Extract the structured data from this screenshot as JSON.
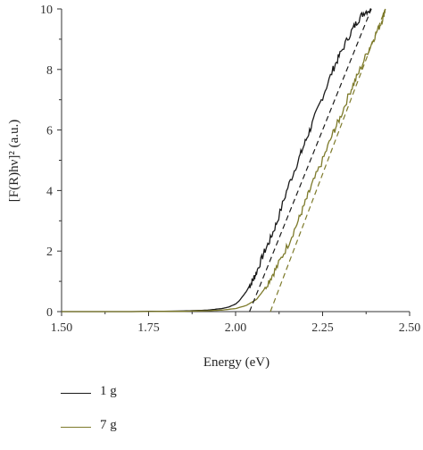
{
  "chart_data": {
    "type": "line",
    "xlabel": "Energy (eV)",
    "ylabel": "[F(R)hν]² (a.u.)",
    "xlim": [
      1.5,
      2.5
    ],
    "ylim": [
      0,
      10
    ],
    "x_ticks": [
      "1.50",
      "1.75",
      "2.00",
      "2.25",
      "2.50"
    ],
    "y_ticks": [
      "0",
      "2",
      "4",
      "6",
      "8",
      "10"
    ],
    "grid": false,
    "legend_position": "bottom",
    "series": [
      {
        "name": "1 g",
        "color": "#1a1a1a",
        "x": [
          1.5,
          1.7,
          1.85,
          1.92,
          1.96,
          1.98,
          2.0,
          2.01,
          2.02,
          2.03,
          2.04,
          2.05,
          2.06,
          2.08,
          2.1,
          2.12,
          2.15,
          2.18,
          2.2,
          2.22,
          2.25,
          2.28,
          2.3,
          2.33,
          2.35,
          2.37,
          2.39
        ],
        "y": [
          0.0,
          0.0,
          0.02,
          0.05,
          0.1,
          0.15,
          0.25,
          0.35,
          0.5,
          0.65,
          0.85,
          1.05,
          1.3,
          1.9,
          2.4,
          3.0,
          4.1,
          5.0,
          5.6,
          6.2,
          7.1,
          8.0,
          8.5,
          9.2,
          9.6,
          9.9,
          10.0
        ]
      },
      {
        "name": "7 g",
        "color": "#7d7a2a",
        "x": [
          1.5,
          1.7,
          1.85,
          1.92,
          1.96,
          2.0,
          2.03,
          2.06,
          2.08,
          2.1,
          2.12,
          2.15,
          2.18,
          2.2,
          2.22,
          2.25,
          2.28,
          2.3,
          2.33,
          2.35,
          2.38,
          2.4,
          2.42,
          2.43
        ],
        "y": [
          0.0,
          0.0,
          0.01,
          0.03,
          0.05,
          0.1,
          0.2,
          0.4,
          0.7,
          1.1,
          1.5,
          2.2,
          3.0,
          3.6,
          4.2,
          5.0,
          5.9,
          6.4,
          7.3,
          7.8,
          8.6,
          9.1,
          9.6,
          10.0
        ]
      }
    ],
    "fit_lines": [
      {
        "series": "1 g",
        "x": [
          2.04,
          2.39
        ],
        "y": [
          0.0,
          10.0
        ]
      },
      {
        "series": "7 g",
        "x": [
          2.1,
          2.43
        ],
        "y": [
          0.0,
          10.0
        ]
      }
    ]
  },
  "legend": {
    "items": [
      {
        "label": "1 g",
        "color": "#1a1a1a"
      },
      {
        "label": "7 g",
        "color": "#7d7a2a"
      }
    ]
  }
}
